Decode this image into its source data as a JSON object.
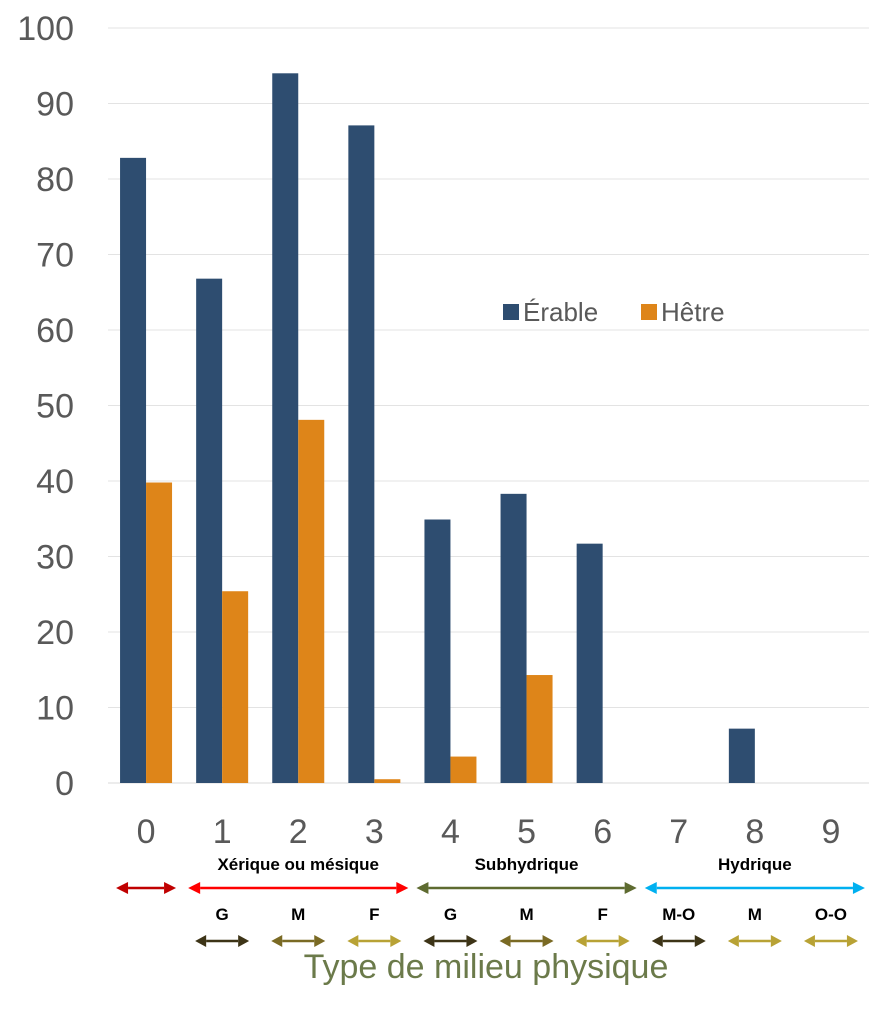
{
  "chart_data": {
    "type": "bar",
    "categories": [
      "0",
      "1",
      "2",
      "3",
      "4",
      "5",
      "6",
      "7",
      "8",
      "9"
    ],
    "series": [
      {
        "name": "Érable",
        "color": "#2e4d70",
        "values": [
          82.8,
          66.8,
          94.0,
          87.1,
          34.9,
          38.3,
          31.7,
          0,
          7.2,
          0
        ]
      },
      {
        "name": "Hêtre",
        "color": "#de8519",
        "values": [
          39.8,
          25.4,
          48.1,
          0.5,
          3.5,
          14.3,
          0,
          0,
          0,
          0
        ]
      }
    ],
    "ylim": [
      0,
      100
    ],
    "yticks": [
      0,
      10,
      20,
      30,
      40,
      50,
      60,
      70,
      80,
      90,
      100
    ],
    "grid": true,
    "xlabel": "Type de milieu physique",
    "legend_position": "right",
    "groups": [
      {
        "label": "",
        "color": "#c00000",
        "from": "0",
        "to": "0"
      },
      {
        "label": "Xérique ou mésique",
        "color": "#ff0000",
        "from": "1",
        "to": "3"
      },
      {
        "label": "Subhydrique",
        "color": "#5e6b30",
        "from": "4",
        "to": "6"
      },
      {
        "label": "Hydrique",
        "color": "#00b0f0",
        "from": "7",
        "to": "9"
      }
    ],
    "subgroups": [
      {
        "label": "G",
        "color": "#3d3417",
        "at": "1"
      },
      {
        "label": "M",
        "color": "#7a6a24",
        "at": "2"
      },
      {
        "label": "F",
        "color": "#b8a235",
        "at": "3"
      },
      {
        "label": "G",
        "color": "#3d3417",
        "at": "4"
      },
      {
        "label": "M",
        "color": "#7a6a24",
        "at": "5"
      },
      {
        "label": "F",
        "color": "#b8a235",
        "at": "6"
      },
      {
        "label": "M-O",
        "color": "#3d3417",
        "at": "7"
      },
      {
        "label": "M",
        "color": "#b8a235",
        "at": "8"
      },
      {
        "label": "O-O",
        "color": "#b8a235",
        "at": "9"
      }
    ]
  }
}
